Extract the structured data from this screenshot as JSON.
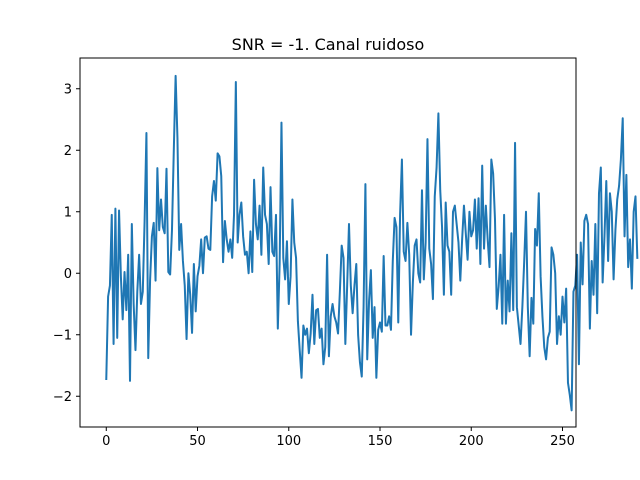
{
  "chart_data": {
    "type": "line",
    "title": "SNR = -1. Canal ruidoso",
    "xlabel": "",
    "ylabel": "",
    "xlim": [
      -14.4,
      257.4
    ],
    "ylim": [
      -2.5,
      3.5
    ],
    "x_ticks": [
      0,
      50,
      100,
      150,
      200,
      250
    ],
    "y_ticks": [
      -2,
      -1,
      0,
      1,
      2,
      3
    ],
    "grid": false,
    "line_color": "#1f77b4",
    "series": [
      {
        "x_start": 0,
        "x_step": 1,
        "values": [
          -1.72,
          -0.38,
          -0.2,
          0.95,
          -1.15,
          1.05,
          -1.05,
          1.02,
          -0.05,
          -0.75,
          0.02,
          -0.6,
          0.3,
          -1.75,
          0.8,
          -0.5,
          -1.25,
          -0.3,
          0.3,
          -0.5,
          -0.3,
          0.85,
          2.28,
          -1.38,
          -0.12,
          0.6,
          0.82,
          -0.12,
          1.71,
          0.7,
          1.2,
          0.75,
          0.65,
          1.7,
          0.02,
          -0.02,
          0.7,
          2.0,
          3.21,
          2.2,
          0.38,
          0.8,
          0.2,
          -0.2,
          -1.07,
          0.0,
          -0.35,
          -0.97,
          0.15,
          -0.62,
          -0.05,
          0.12,
          0.55,
          0.0,
          0.58,
          0.6,
          0.4,
          0.38,
          1.25,
          1.5,
          1.18,
          1.95,
          1.9,
          1.58,
          0.18,
          0.85,
          0.55,
          0.35,
          0.55,
          0.25,
          0.95,
          3.11,
          0.5,
          0.95,
          1.15,
          0.6,
          0.3,
          0.35,
          0.0,
          0.68,
          0.02,
          1.52,
          0.8,
          0.55,
          1.1,
          0.3,
          1.72,
          0.95,
          0.8,
          0.15,
          1.4,
          0.35,
          0.28,
          0.95,
          -0.9,
          0.15,
          2.45,
          0.25,
          -0.1,
          0.52,
          -0.5,
          -0.05,
          1.2,
          0.5,
          0.25,
          -0.78,
          -1.25,
          -1.7,
          -0.85,
          -1.0,
          -0.9,
          -1.3,
          -0.98,
          -0.35,
          -1.15,
          -0.6,
          -0.58,
          -1.05,
          -0.9,
          -1.48,
          -1.2,
          0.3,
          -1.35,
          -0.7,
          -0.5,
          -0.7,
          -0.8,
          -0.98,
          -0.3,
          0.45,
          0.25,
          -1.15,
          -0.2,
          0.8,
          -0.2,
          -0.65,
          -0.2,
          0.15,
          -1.0,
          -1.45,
          -1.68,
          -0.55,
          1.45,
          -1.4,
          -0.45,
          0.05,
          -1.05,
          -0.55,
          -1.7,
          -0.92,
          -0.8,
          -0.95,
          0.28,
          -0.85,
          -0.85,
          -0.7,
          -0.92,
          0.2,
          0.9,
          0.75,
          -0.8,
          0.95,
          1.85,
          0.35,
          0.2,
          0.82,
          0.3,
          -1.0,
          -0.15,
          0.45,
          0.55,
          0.0,
          -0.15,
          1.35,
          -0.1,
          0.5,
          2.18,
          0.4,
          0.15,
          -0.42,
          1.25,
          1.72,
          2.6,
          1.35,
          0.75,
          -0.35,
          1.15,
          0.45,
          0.35,
          -0.35,
          1.0,
          1.1,
          0.8,
          0.5,
          -0.12,
          0.55,
          1.1,
          0.65,
          0.22,
          1.0,
          0.6,
          0.7,
          1.2,
          0.4,
          1.22,
          0.15,
          1.75,
          0.4,
          1.1,
          0.55,
          0.1,
          1.85,
          1.62,
          0.88,
          -0.58,
          -0.22,
          0.3,
          -0.82,
          0.95,
          -0.82,
          -0.12,
          -0.62,
          0.65,
          -0.6,
          2.12,
          -0.55,
          -0.85,
          -1.15,
          -0.55,
          0.18,
          1.0,
          -0.55,
          -1.35,
          -0.4,
          -0.82,
          0.72,
          0.45,
          1.3,
          -0.05,
          -0.7,
          -1.2,
          -1.4,
          -1.05,
          -0.95,
          0.42,
          0.3,
          0.0,
          -1.15,
          -0.7,
          -1.0,
          -0.38,
          -0.8,
          -0.25,
          -1.78,
          -1.98,
          -2.23,
          -0.3,
          -0.2,
          0.3,
          -1.48,
          0.5,
          -0.18,
          0.85,
          0.95,
          0.8,
          -0.9,
          0.2,
          -0.35,
          0.8,
          -0.65,
          1.3,
          1.72,
          -0.15,
          0.6,
          1.5,
          0.2,
          1.3,
          1.0,
          -0.1,
          0.7,
          1.2,
          1.42,
          1.85,
          2.52,
          0.6,
          1.6,
          0.1,
          0.55,
          -0.25,
          1.0,
          1.25,
          0.25
        ]
      }
    ]
  }
}
